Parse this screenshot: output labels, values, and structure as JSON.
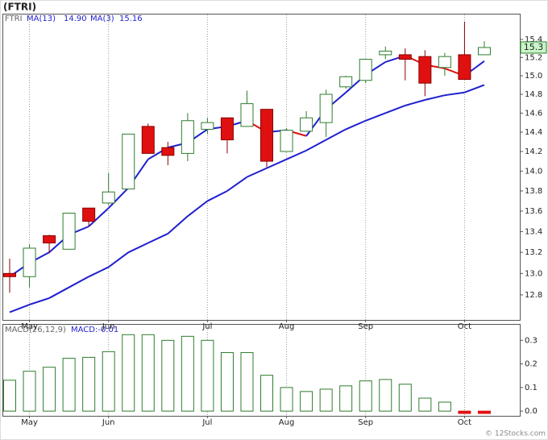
{
  "watermark": "© 12Stocks.com",
  "chart_data": [
    {
      "type": "candlestick",
      "title": "(FTRI)",
      "symbol": "FTRI",
      "categories": [
        null,
        "May",
        null,
        null,
        null,
        "Jun",
        null,
        null,
        null,
        null,
        "Jul",
        null,
        null,
        null,
        "Aug",
        null,
        null,
        null,
        "Sep",
        null,
        null,
        null,
        null,
        "Oct",
        null
      ],
      "open": [
        13.0,
        12.97,
        13.36,
        13.23,
        13.63,
        13.68,
        13.82,
        14.46,
        14.24,
        14.18,
        14.43,
        14.55,
        14.46,
        14.64,
        14.2,
        14.41,
        14.5,
        14.88,
        14.95,
        15.23,
        15.23,
        15.21,
        15.09,
        15.23,
        15.23
      ],
      "high": [
        13.14,
        13.28,
        13.37,
        13.58,
        13.63,
        13.98,
        14.38,
        14.49,
        14.3,
        14.6,
        14.55,
        14.55,
        14.84,
        14.64,
        14.44,
        14.62,
        14.85,
        15.0,
        15.18,
        15.32,
        15.3,
        15.28,
        15.25,
        15.6,
        15.38
      ],
      "low": [
        12.82,
        12.87,
        13.19,
        13.23,
        13.45,
        13.66,
        13.82,
        14.18,
        14.06,
        14.1,
        14.38,
        14.18,
        14.46,
        14.04,
        14.2,
        14.41,
        14.35,
        14.86,
        14.92,
        15.18,
        14.95,
        14.78,
        15.0,
        14.96,
        15.23
      ],
      "close": [
        12.97,
        13.24,
        13.29,
        13.58,
        13.5,
        13.79,
        14.38,
        14.18,
        14.16,
        14.52,
        14.5,
        14.32,
        14.7,
        14.1,
        14.42,
        14.55,
        14.8,
        14.99,
        15.18,
        15.27,
        15.18,
        14.92,
        15.21,
        14.96,
        15.31
      ],
      "up_color": "#ffffff",
      "up_border": "#2e7d2e",
      "down_color": "#e01010",
      "down_border": "#8a0000",
      "series": [
        {
          "name": "MA(13)",
          "value_label": "14.90",
          "color": "#1f1fcf",
          "values": [
            12.64,
            12.71,
            12.77,
            12.87,
            12.97,
            13.06,
            13.2,
            13.29,
            13.38,
            13.55,
            13.7,
            13.8,
            13.94,
            14.03,
            14.12,
            14.21,
            14.32,
            14.43,
            14.52,
            14.6,
            14.68,
            14.74,
            14.79,
            14.82,
            14.9
          ]
        },
        {
          "name": "MA(3)",
          "value_label": "15.16",
          "color": "#1f1fcf",
          "down_color": "#e01010",
          "values": [
            12.97,
            13.1,
            13.2,
            13.37,
            13.45,
            13.63,
            13.83,
            14.12,
            14.24,
            14.29,
            14.43,
            14.46,
            14.52,
            14.4,
            14.42,
            14.36,
            14.64,
            14.82,
            15.01,
            15.15,
            15.22,
            15.12,
            15.08,
            15.0,
            15.16
          ]
        }
      ],
      "last_label": "15.3",
      "log_scale": true,
      "grid": true,
      "ylim": [
        12.57,
        15.68
      ],
      "yticks": [
        12.8,
        {
          "value": 13.0,
          "label": "13.0"
        },
        13.2,
        13.4,
        13.6,
        13.8,
        {
          "value": 14.0,
          "label": "14.0"
        },
        14.2,
        14.4,
        14.6,
        14.8,
        {
          "value": 15.0,
          "label": "15.0"
        },
        15.2,
        15.4
      ]
    },
    {
      "type": "bar",
      "title": "MACD(26,12,9)",
      "subtitle": "MACD:-0.01",
      "categories": [
        null,
        "May",
        null,
        null,
        null,
        "Jun",
        null,
        null,
        null,
        null,
        "Jul",
        null,
        null,
        null,
        "Aug",
        null,
        null,
        null,
        "Sep",
        null,
        null,
        null,
        null,
        "Oct",
        null
      ],
      "values": [
        0.131,
        0.169,
        0.186,
        0.224,
        0.228,
        0.252,
        0.324,
        0.324,
        0.3,
        0.317,
        0.3,
        0.248,
        0.248,
        0.152,
        0.1,
        0.083,
        0.093,
        0.107,
        0.128,
        0.134,
        0.114,
        0.055,
        0.038,
        -0.01,
        -0.01
      ],
      "color": "#2e7d2e",
      "negative_color": "#e01010",
      "grid": true,
      "ylim": [
        -0.02,
        0.366
      ],
      "yticks": [
        {
          "value": 0,
          "label": "0.0"
        },
        0.1,
        0.2,
        0.3
      ]
    }
  ]
}
